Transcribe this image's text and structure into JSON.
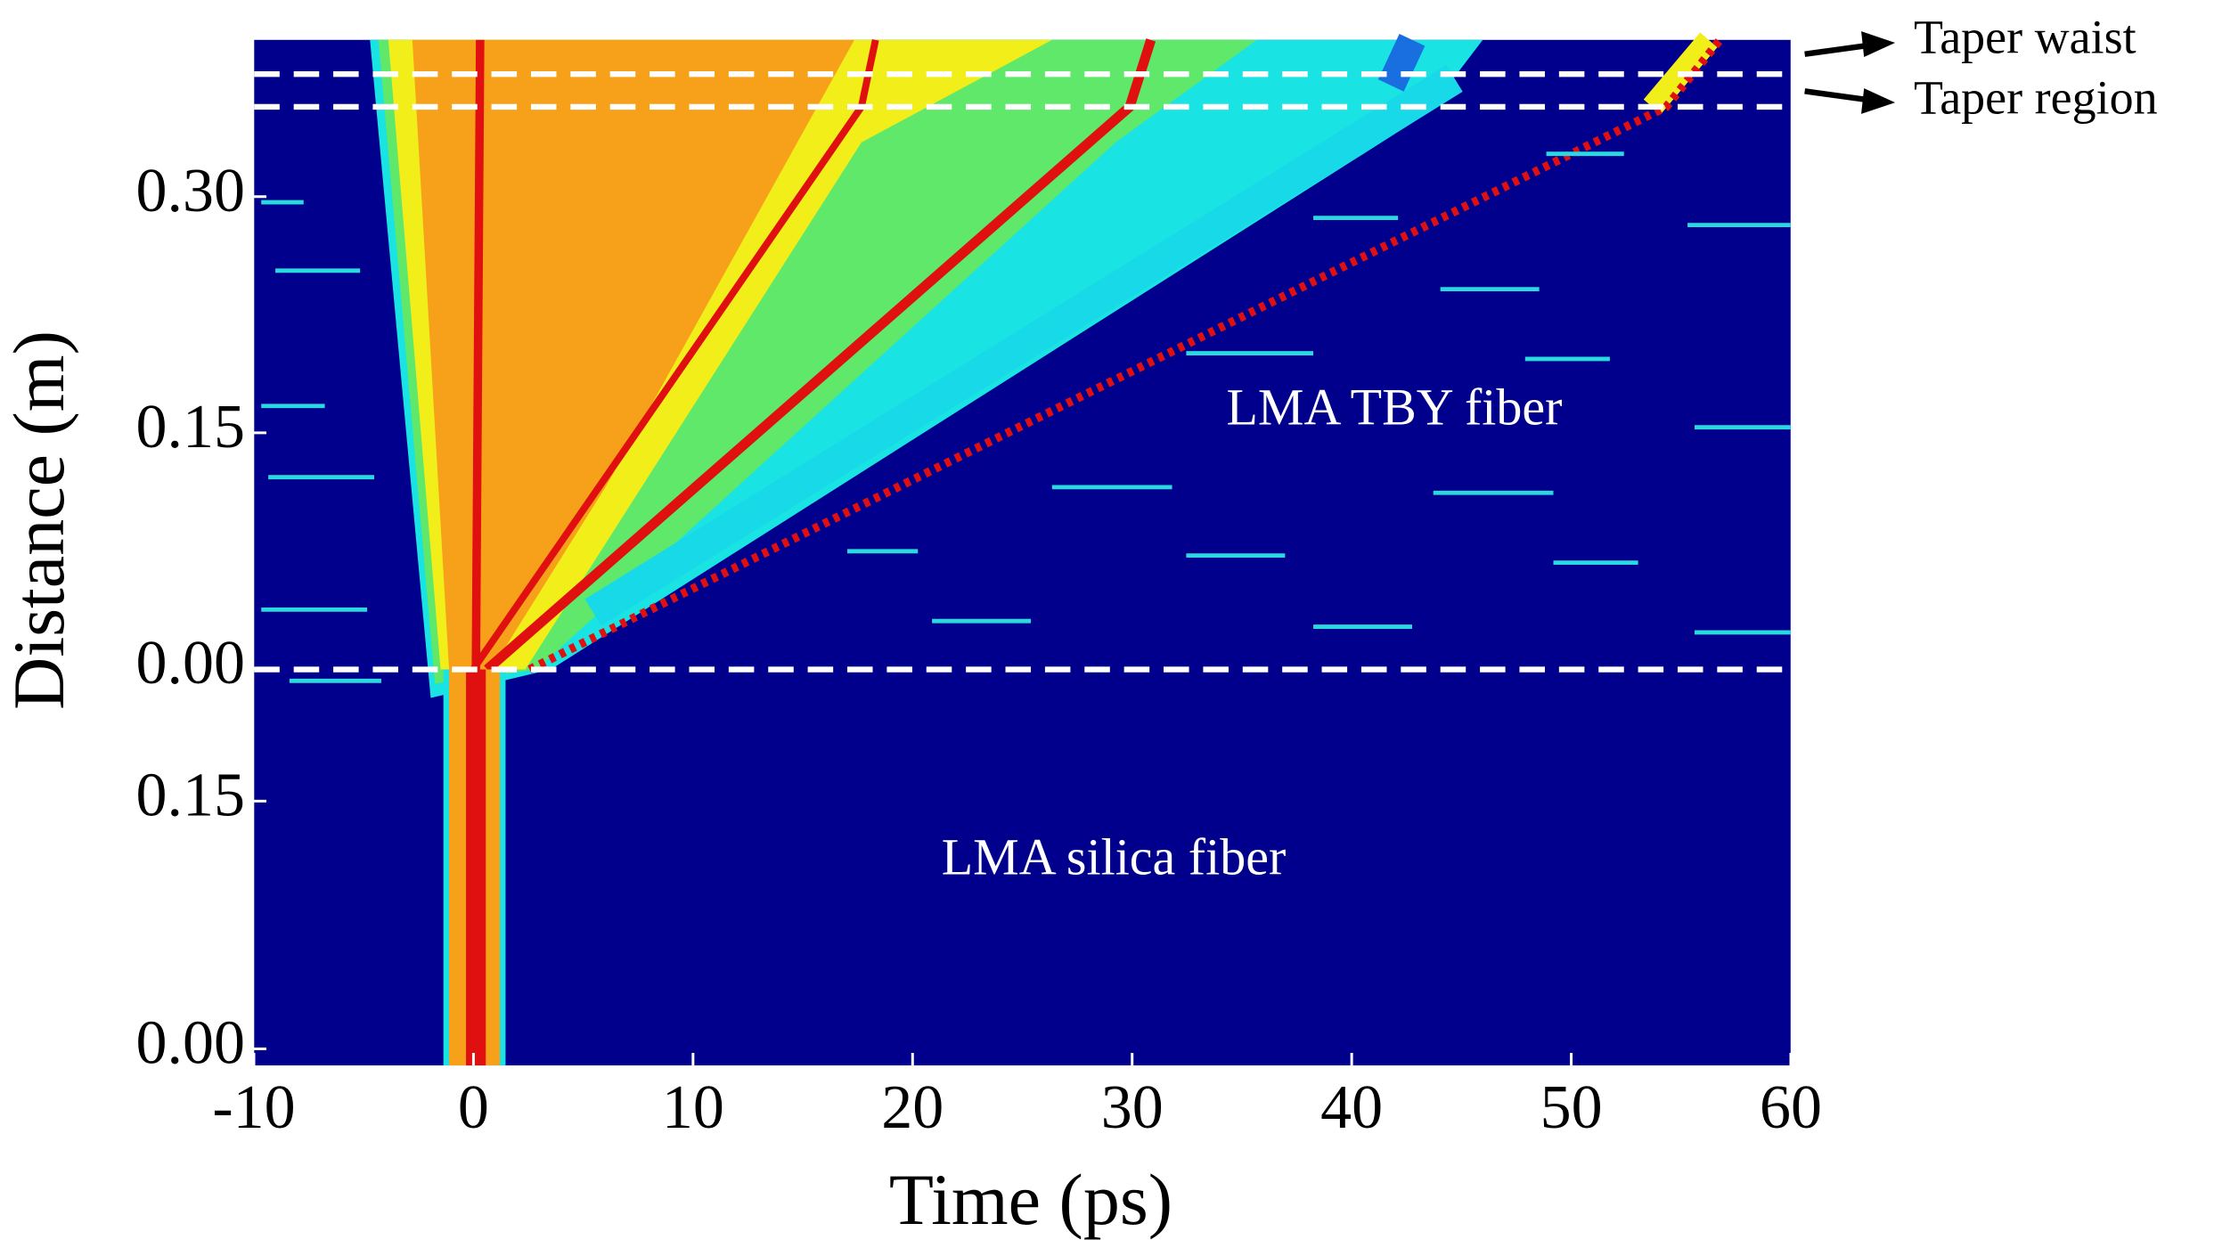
{
  "chart_data": [
    {
      "type": "heatmap",
      "ylim": [
        0,
        0.4
      ],
      "yticks": [
        {
          "value": 0,
          "label": "0.00"
        },
        0.15,
        {
          "value": 0.3,
          "label": "0.30"
        }
      ],
      "annotations": [
        "LMA TBY fiber",
        "Taper waist",
        "Taper region"
      ]
    },
    {
      "type": "heatmap",
      "ylim": [
        -0.01,
        0.23
      ],
      "yticks": [
        {
          "value": 0,
          "label": "0.00"
        },
        0.15
      ],
      "xlim": [
        -10,
        60
      ],
      "xticks": [
        -10,
        0,
        10,
        20,
        30,
        40,
        50,
        60
      ],
      "xlabel": "Time (ps)",
      "ylabel": "Distance (m)",
      "annotations": [
        "LMA silica fiber"
      ]
    }
  ]
}
